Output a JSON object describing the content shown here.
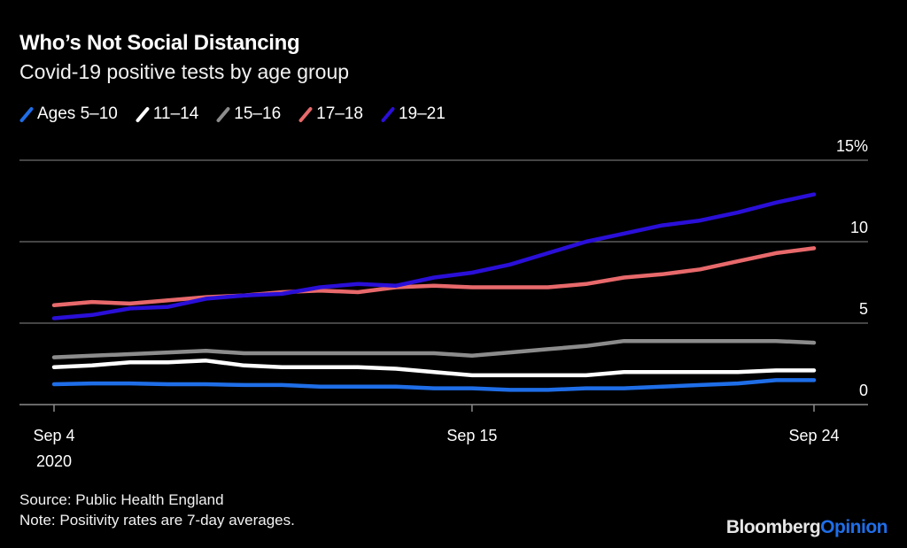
{
  "header": {
    "title": "Who’s Not Social Distancing",
    "subtitle": "Covid-19 positive tests by age group"
  },
  "footer": {
    "source": "Source: Public Health England",
    "note": "Note: Positivity rates are 7-day averages.",
    "brand_primary": "Bloomberg",
    "brand_secondary": "Opinion"
  },
  "chart_data": {
    "type": "line",
    "title": "Who’s Not Social Distancing",
    "subtitle": "Covid-19 positive tests by age group",
    "xlabel": "",
    "ylabel": "",
    "x": [
      "Sep 4",
      "Sep 5",
      "Sep 6",
      "Sep 7",
      "Sep 8",
      "Sep 9",
      "Sep 10",
      "Sep 11",
      "Sep 12",
      "Sep 13",
      "Sep 14",
      "Sep 15",
      "Sep 16",
      "Sep 17",
      "Sep 18",
      "Sep 19",
      "Sep 20",
      "Sep 21",
      "Sep 22",
      "Sep 23",
      "Sep 24"
    ],
    "x_ticks": [
      {
        "index": 0,
        "label": "Sep 4",
        "sublabel": "2020"
      },
      {
        "index": 11,
        "label": "Sep 15",
        "sublabel": ""
      },
      {
        "index": 20,
        "label": "Sep 24",
        "sublabel": ""
      }
    ],
    "y_ticks": [
      {
        "value": 0,
        "label": "0"
      },
      {
        "value": 5,
        "label": "5"
      },
      {
        "value": 10,
        "label": "10"
      },
      {
        "value": 15,
        "label": "15%"
      }
    ],
    "ylim": [
      0,
      15
    ],
    "grid": true,
    "legend_position": "top-left",
    "series": [
      {
        "name": "Ages 5–10",
        "color": "#1f6ee8",
        "values": [
          1.25,
          1.3,
          1.3,
          1.25,
          1.25,
          1.2,
          1.2,
          1.1,
          1.1,
          1.1,
          1.0,
          1.0,
          0.9,
          0.9,
          1.0,
          1.0,
          1.1,
          1.2,
          1.3,
          1.5,
          1.5
        ]
      },
      {
        "name": "11–14",
        "color": "#ffffff",
        "values": [
          2.3,
          2.4,
          2.6,
          2.6,
          2.7,
          2.4,
          2.3,
          2.3,
          2.3,
          2.2,
          2.0,
          1.8,
          1.8,
          1.8,
          1.8,
          2.0,
          2.0,
          2.0,
          2.0,
          2.1,
          2.1
        ]
      },
      {
        "name": "15–16",
        "color": "#8c8c8c",
        "values": [
          2.9,
          3.0,
          3.1,
          3.2,
          3.3,
          3.15,
          3.15,
          3.15,
          3.15,
          3.15,
          3.15,
          3.0,
          3.2,
          3.4,
          3.6,
          3.9,
          3.9,
          3.9,
          3.9,
          3.9,
          3.8
        ]
      },
      {
        "name": "17–18",
        "color": "#e8696b",
        "values": [
          6.1,
          6.3,
          6.2,
          6.4,
          6.6,
          6.7,
          6.9,
          7.0,
          6.9,
          7.2,
          7.3,
          7.2,
          7.2,
          7.2,
          7.4,
          7.8,
          8.0,
          8.3,
          8.8,
          9.3,
          9.6
        ]
      },
      {
        "name": "19–21",
        "color": "#2a0fd8",
        "values": [
          5.3,
          5.5,
          5.9,
          6.0,
          6.5,
          6.7,
          6.8,
          7.2,
          7.4,
          7.3,
          7.8,
          8.1,
          8.6,
          9.3,
          10.0,
          10.5,
          11.0,
          11.3,
          11.8,
          12.4,
          12.9
        ]
      }
    ]
  }
}
